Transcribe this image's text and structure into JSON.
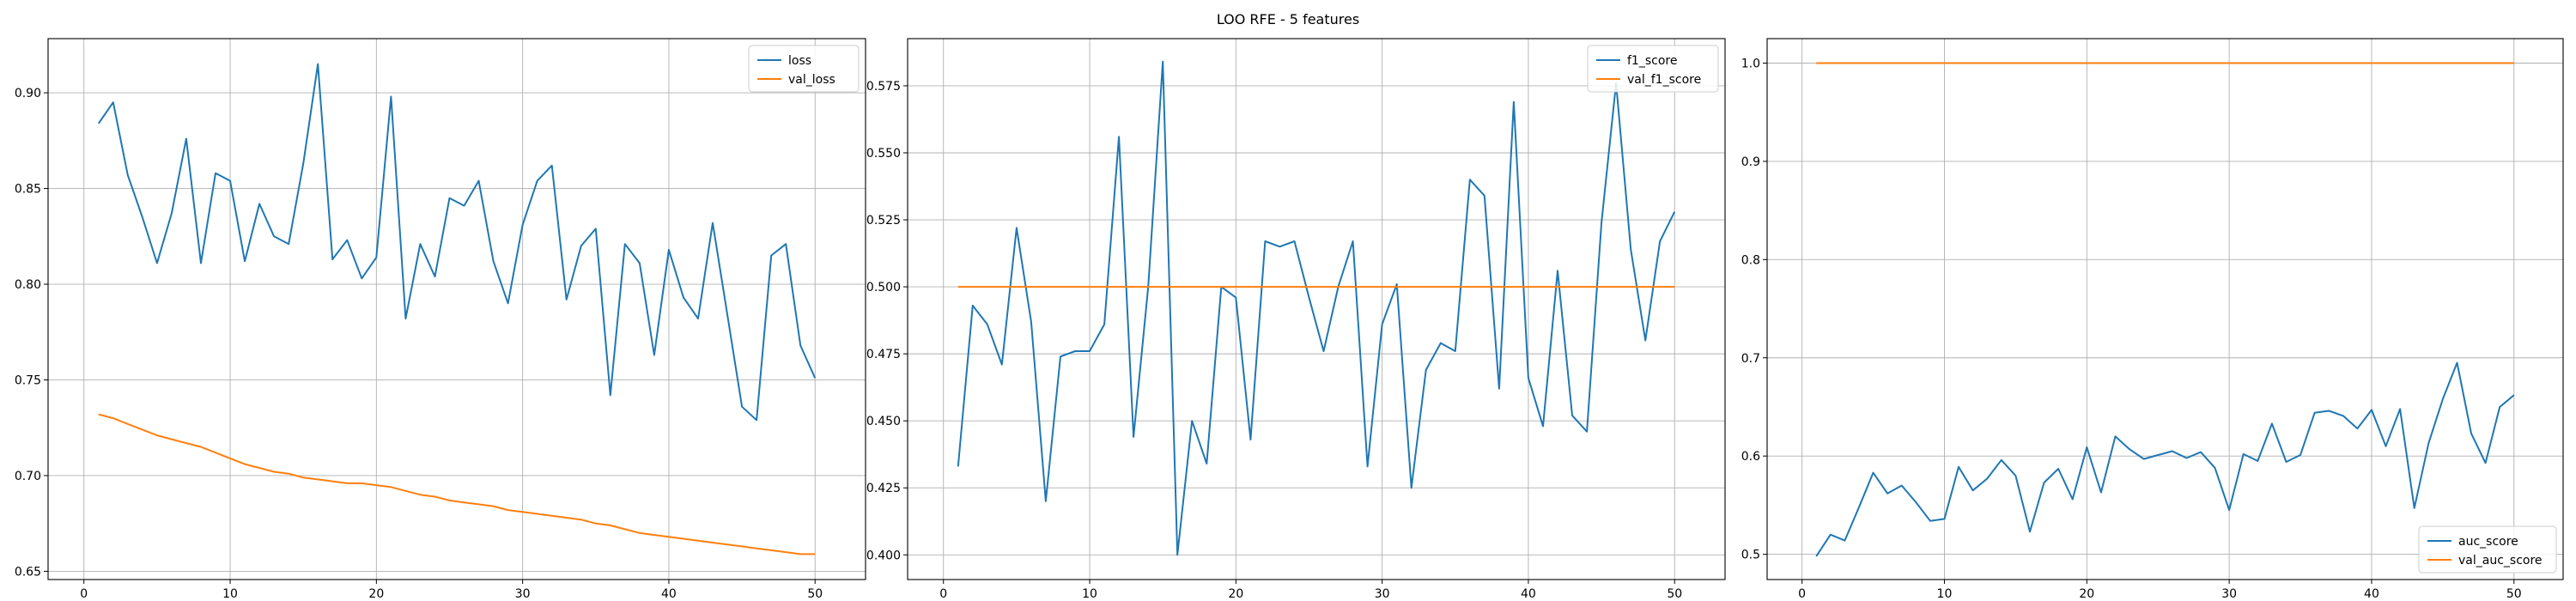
{
  "figure": {
    "title": "LOO RFE - 5 features"
  },
  "chart_data": [
    {
      "type": "line",
      "title": "",
      "xlabel": "",
      "ylabel": "",
      "xlim": [
        -2.45,
        53.45
      ],
      "ylim": [
        0.6457,
        0.9283
      ],
      "xticks": [
        0,
        10,
        20,
        30,
        40,
        50
      ],
      "yticks": [
        0.65,
        0.7,
        0.75,
        0.8,
        0.85,
        0.9
      ],
      "ytick_labels": [
        "0.65",
        "0.70",
        "0.75",
        "0.80",
        "0.85",
        "0.90"
      ],
      "grid": true,
      "legend_position": "upper right",
      "series": [
        {
          "name": "loss",
          "color": "#1f77b4",
          "x": [
            1,
            2,
            3,
            4,
            5,
            6,
            7,
            8,
            9,
            10,
            11,
            12,
            13,
            14,
            15,
            16,
            17,
            18,
            19,
            20,
            21,
            22,
            23,
            24,
            25,
            26,
            27,
            28,
            29,
            30,
            31,
            32,
            33,
            34,
            35,
            36,
            37,
            38,
            39,
            40,
            41,
            42,
            43,
            44,
            45,
            46,
            47,
            48,
            49,
            50
          ],
          "y": [
            0.884,
            0.895,
            0.857,
            0.835,
            0.811,
            0.837,
            0.876,
            0.811,
            0.858,
            0.854,
            0.812,
            0.842,
            0.825,
            0.821,
            0.863,
            0.915,
            0.813,
            0.823,
            0.803,
            0.814,
            0.898,
            0.782,
            0.821,
            0.804,
            0.845,
            0.841,
            0.854,
            0.812,
            0.79,
            0.831,
            0.854,
            0.862,
            0.792,
            0.82,
            0.829,
            0.742,
            0.821,
            0.811,
            0.763,
            0.818,
            0.793,
            0.782,
            0.832,
            0.784,
            0.736,
            0.729,
            0.815,
            0.821,
            0.768,
            0.751
          ]
        },
        {
          "name": "val_loss",
          "color": "#ff7f0e",
          "x": [
            1,
            2,
            3,
            4,
            5,
            6,
            7,
            8,
            9,
            10,
            11,
            12,
            13,
            14,
            15,
            16,
            17,
            18,
            19,
            20,
            21,
            22,
            23,
            24,
            25,
            26,
            27,
            28,
            29,
            30,
            31,
            32,
            33,
            34,
            35,
            36,
            37,
            38,
            39,
            40,
            41,
            42,
            43,
            44,
            45,
            46,
            47,
            48,
            49,
            50
          ],
          "y": [
            0.732,
            0.73,
            0.727,
            0.724,
            0.721,
            0.719,
            0.717,
            0.715,
            0.712,
            0.709,
            0.706,
            0.704,
            0.702,
            0.701,
            0.699,
            0.698,
            0.697,
            0.696,
            0.696,
            0.695,
            0.694,
            0.692,
            0.69,
            0.689,
            0.687,
            0.686,
            0.685,
            0.684,
            0.682,
            0.681,
            0.68,
            0.679,
            0.678,
            0.677,
            0.675,
            0.674,
            0.672,
            0.67,
            0.669,
            0.668,
            0.667,
            0.666,
            0.665,
            0.664,
            0.663,
            0.662,
            0.661,
            0.66,
            0.659,
            0.659
          ]
        }
      ]
    },
    {
      "type": "line",
      "title": "",
      "xlabel": "",
      "ylabel": "",
      "xlim": [
        -2.45,
        53.45
      ],
      "ylim": [
        0.3908,
        0.5926
      ],
      "xticks": [
        0,
        10,
        20,
        30,
        40,
        50
      ],
      "yticks": [
        0.4,
        0.425,
        0.45,
        0.475,
        0.5,
        0.525,
        0.55,
        0.575
      ],
      "ytick_labels": [
        "0.400",
        "0.425",
        "0.450",
        "0.475",
        "0.500",
        "0.525",
        "0.550",
        "0.575"
      ],
      "grid": true,
      "legend_position": "upper right",
      "series": [
        {
          "name": "f1_score",
          "color": "#1f77b4",
          "x": [
            1,
            2,
            3,
            4,
            5,
            6,
            7,
            8,
            9,
            10,
            11,
            12,
            13,
            14,
            15,
            16,
            17,
            18,
            19,
            20,
            21,
            22,
            23,
            24,
            25,
            26,
            27,
            28,
            29,
            30,
            31,
            32,
            33,
            34,
            35,
            36,
            37,
            38,
            39,
            40,
            41,
            42,
            43,
            44,
            45,
            46,
            47,
            48,
            49,
            50
          ],
          "y": [
            0.433,
            0.493,
            0.486,
            0.471,
            0.522,
            0.487,
            0.42,
            0.474,
            0.476,
            0.476,
            0.486,
            0.556,
            0.444,
            0.5,
            0.584,
            0.4,
            0.45,
            0.434,
            0.5,
            0.496,
            0.443,
            0.517,
            0.515,
            0.517,
            0.496,
            0.476,
            0.5,
            0.517,
            0.433,
            0.486,
            0.501,
            0.425,
            0.469,
            0.479,
            0.476,
            0.54,
            0.534,
            0.462,
            0.569,
            0.466,
            0.448,
            0.506,
            0.452,
            0.446,
            0.524,
            0.576,
            0.514,
            0.48,
            0.517,
            0.528
          ]
        },
        {
          "name": "val_f1_score",
          "color": "#ff7f0e",
          "x": [
            1,
            2,
            3,
            4,
            5,
            6,
            7,
            8,
            9,
            10,
            11,
            12,
            13,
            14,
            15,
            16,
            17,
            18,
            19,
            20,
            21,
            22,
            23,
            24,
            25,
            26,
            27,
            28,
            29,
            30,
            31,
            32,
            33,
            34,
            35,
            36,
            37,
            38,
            39,
            40,
            41,
            42,
            43,
            44,
            45,
            46,
            47,
            48,
            49,
            50
          ],
          "y": [
            0.5,
            0.5,
            0.5,
            0.5,
            0.5,
            0.5,
            0.5,
            0.5,
            0.5,
            0.5,
            0.5,
            0.5,
            0.5,
            0.5,
            0.5,
            0.5,
            0.5,
            0.5,
            0.5,
            0.5,
            0.5,
            0.5,
            0.5,
            0.5,
            0.5,
            0.5,
            0.5,
            0.5,
            0.5,
            0.5,
            0.5,
            0.5,
            0.5,
            0.5,
            0.5,
            0.5,
            0.5,
            0.5,
            0.5,
            0.5,
            0.5,
            0.5,
            0.5,
            0.5,
            0.5,
            0.5,
            0.5,
            0.5,
            0.5,
            0.5
          ]
        }
      ]
    },
    {
      "type": "line",
      "title": "",
      "xlabel": "",
      "ylabel": "",
      "xlim": [
        -2.45,
        53.45
      ],
      "ylim": [
        0.4743,
        1.0249
      ],
      "xticks": [
        0,
        10,
        20,
        30,
        40,
        50
      ],
      "yticks": [
        0.5,
        0.6,
        0.7,
        0.8,
        0.9,
        1.0
      ],
      "ytick_labels": [
        "0.5",
        "0.6",
        "0.7",
        "0.8",
        "0.9",
        "1.0"
      ],
      "grid": true,
      "legend_position": "lower right",
      "series": [
        {
          "name": "auc_score",
          "color": "#1f77b4",
          "x": [
            1,
            2,
            3,
            4,
            5,
            6,
            7,
            8,
            9,
            10,
            11,
            12,
            13,
            14,
            15,
            16,
            17,
            18,
            19,
            20,
            21,
            22,
            23,
            24,
            25,
            26,
            27,
            28,
            29,
            30,
            31,
            32,
            33,
            34,
            35,
            36,
            37,
            38,
            39,
            40,
            41,
            42,
            43,
            44,
            45,
            46,
            47,
            48,
            49,
            50
          ],
          "y": [
            0.498,
            0.52,
            0.514,
            0.548,
            0.583,
            0.562,
            0.57,
            0.553,
            0.534,
            0.536,
            0.589,
            0.565,
            0.577,
            0.596,
            0.58,
            0.523,
            0.573,
            0.587,
            0.556,
            0.609,
            0.563,
            0.62,
            0.607,
            0.597,
            0.601,
            0.605,
            0.598,
            0.604,
            0.588,
            0.545,
            0.602,
            0.595,
            0.633,
            0.594,
            0.601,
            0.644,
            0.646,
            0.641,
            0.628,
            0.647,
            0.61,
            0.648,
            0.547,
            0.613,
            0.658,
            0.695,
            0.623,
            0.593,
            0.65,
            0.662
          ]
        },
        {
          "name": "val_auc_score",
          "color": "#ff7f0e",
          "x": [
            1,
            2,
            3,
            4,
            5,
            6,
            7,
            8,
            9,
            10,
            11,
            12,
            13,
            14,
            15,
            16,
            17,
            18,
            19,
            20,
            21,
            22,
            23,
            24,
            25,
            26,
            27,
            28,
            29,
            30,
            31,
            32,
            33,
            34,
            35,
            36,
            37,
            38,
            39,
            40,
            41,
            42,
            43,
            44,
            45,
            46,
            47,
            48,
            49,
            50
          ],
          "y": [
            1.0,
            1.0,
            1.0,
            1.0,
            1.0,
            1.0,
            1.0,
            1.0,
            1.0,
            1.0,
            1.0,
            1.0,
            1.0,
            1.0,
            1.0,
            1.0,
            1.0,
            1.0,
            1.0,
            1.0,
            1.0,
            1.0,
            1.0,
            1.0,
            1.0,
            1.0,
            1.0,
            1.0,
            1.0,
            1.0,
            1.0,
            1.0,
            1.0,
            1.0,
            1.0,
            1.0,
            1.0,
            1.0,
            1.0,
            1.0,
            1.0,
            1.0,
            1.0,
            1.0,
            1.0,
            1.0,
            1.0,
            1.0,
            1.0,
            1.0
          ]
        }
      ]
    }
  ]
}
